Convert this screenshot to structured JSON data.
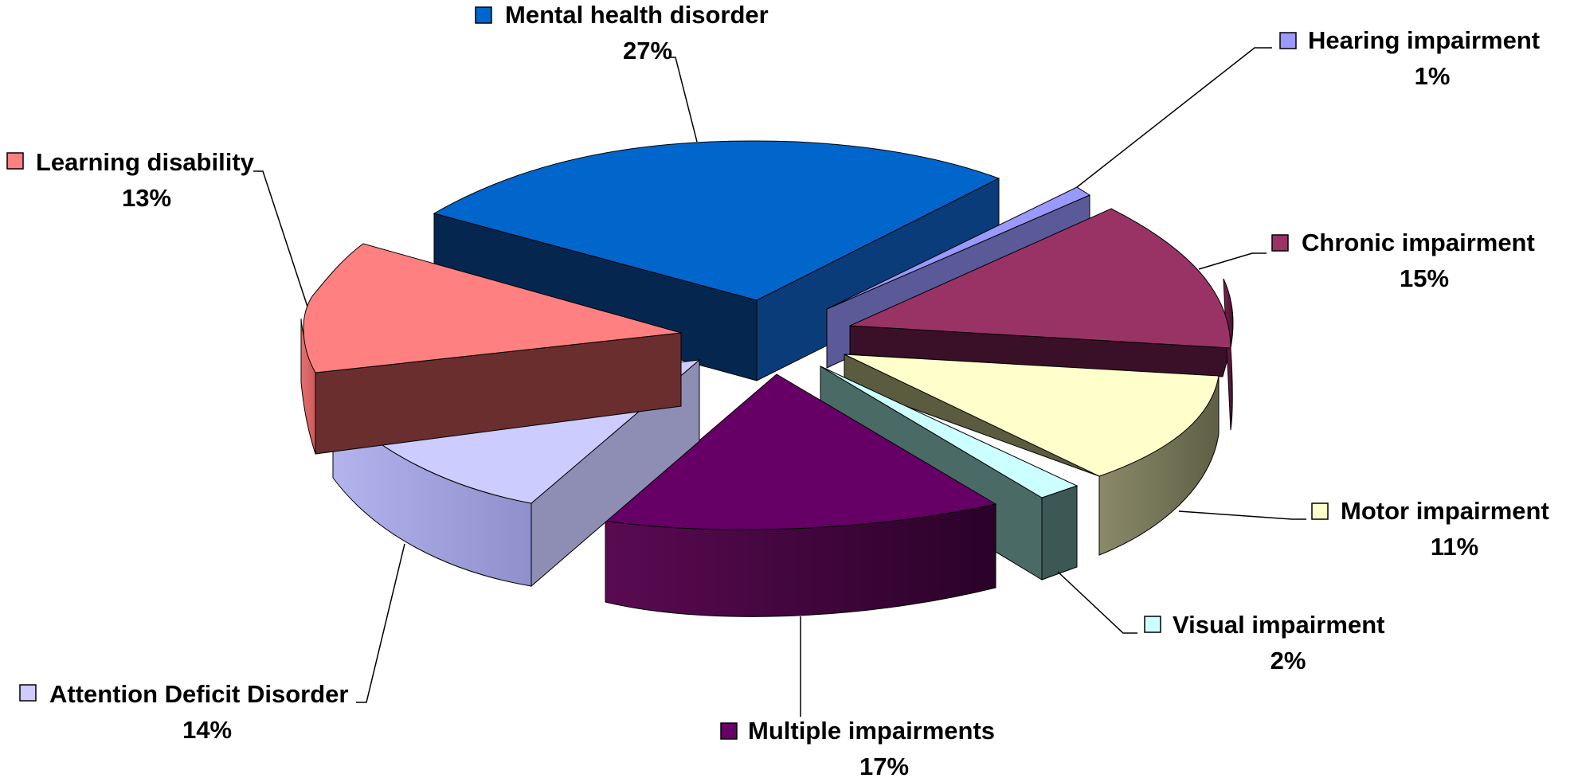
{
  "chart_data": {
    "type": "pie",
    "title": "",
    "slices": [
      {
        "label": "Mental health disorder",
        "value_label": "27%",
        "value": 27,
        "color": "#0066CC"
      },
      {
        "label": "Hearing impairment",
        "value_label": "1%",
        "value": 1,
        "color": "#9999FF"
      },
      {
        "label": "Chronic impairment",
        "value_label": "15%",
        "value": 15,
        "color": "#993366"
      },
      {
        "label": "Motor impairment",
        "value_label": "11%",
        "value": 11,
        "color": "#FFFFCC"
      },
      {
        "label": "Visual impairment",
        "value_label": "2%",
        "value": 2,
        "color": "#CCFFFF"
      },
      {
        "label": "Multiple impairments",
        "value_label": "17%",
        "value": 17,
        "color": "#660066"
      },
      {
        "label": "Attention Deficit Disorder",
        "value_label": "14%",
        "value": 14,
        "color": "#CCCCFF"
      },
      {
        "label": "Learning disability",
        "value_label": "13%",
        "value": 13,
        "color": "#FF8080"
      }
    ],
    "style": "3d-exploded",
    "legend": "inline-labels"
  }
}
